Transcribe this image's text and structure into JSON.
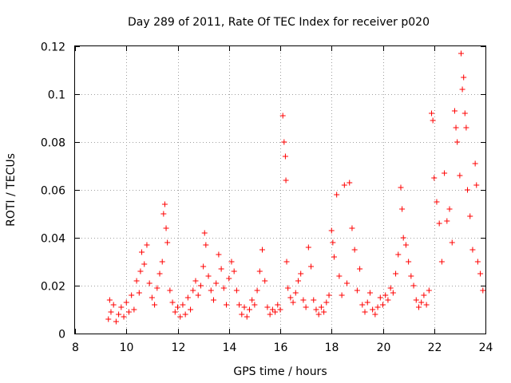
{
  "chart_data": {
    "type": "scatter",
    "title": "Day 289 of 2011, Rate Of TEC Index for receiver p020",
    "xlabel": "GPS time / hours",
    "ylabel": "ROTI / TECUs",
    "xlim": [
      8,
      24
    ],
    "ylim": [
      0,
      0.12
    ],
    "x_ticks": [
      "8",
      "10",
      "12",
      "14",
      "16",
      "18",
      "20",
      "22",
      "24"
    ],
    "y_ticks": [
      "0",
      "0.02",
      "0.04",
      "0.06",
      "0.08",
      "0.1",
      "0.12"
    ],
    "grid": true,
    "legend": "none",
    "marker": "plus",
    "color": "#ff0000",
    "series": [
      {
        "values": [
          [
            9.3,
            0.006
          ],
          [
            9.35,
            0.014
          ],
          [
            9.4,
            0.009
          ],
          [
            9.5,
            0.012
          ],
          [
            9.6,
            0.005
          ],
          [
            9.7,
            0.008
          ],
          [
            9.8,
            0.011
          ],
          [
            9.9,
            0.007
          ],
          [
            10.0,
            0.013
          ],
          [
            10.1,
            0.009
          ],
          [
            10.2,
            0.016
          ],
          [
            10.3,
            0.01
          ],
          [
            10.4,
            0.022
          ],
          [
            10.5,
            0.017
          ],
          [
            10.55,
            0.026
          ],
          [
            10.6,
            0.034
          ],
          [
            10.7,
            0.029
          ],
          [
            10.8,
            0.037
          ],
          [
            10.9,
            0.021
          ],
          [
            11.0,
            0.015
          ],
          [
            11.1,
            0.012
          ],
          [
            11.2,
            0.019
          ],
          [
            11.3,
            0.025
          ],
          [
            11.4,
            0.03
          ],
          [
            11.45,
            0.05
          ],
          [
            11.5,
            0.054
          ],
          [
            11.55,
            0.044
          ],
          [
            11.6,
            0.038
          ],
          [
            11.7,
            0.018
          ],
          [
            11.8,
            0.013
          ],
          [
            11.9,
            0.009
          ],
          [
            12.0,
            0.011
          ],
          [
            12.1,
            0.007
          ],
          [
            12.2,
            0.012
          ],
          [
            12.3,
            0.008
          ],
          [
            12.4,
            0.015
          ],
          [
            12.5,
            0.01
          ],
          [
            12.6,
            0.018
          ],
          [
            12.7,
            0.022
          ],
          [
            12.8,
            0.016
          ],
          [
            12.9,
            0.02
          ],
          [
            13.0,
            0.028
          ],
          [
            13.05,
            0.042
          ],
          [
            13.1,
            0.037
          ],
          [
            13.2,
            0.024
          ],
          [
            13.3,
            0.018
          ],
          [
            13.4,
            0.014
          ],
          [
            13.5,
            0.021
          ],
          [
            13.6,
            0.033
          ],
          [
            13.7,
            0.027
          ],
          [
            13.8,
            0.019
          ],
          [
            13.9,
            0.012
          ],
          [
            14.0,
            0.023
          ],
          [
            14.1,
            0.03
          ],
          [
            14.2,
            0.026
          ],
          [
            14.3,
            0.018
          ],
          [
            14.4,
            0.012
          ],
          [
            14.5,
            0.008
          ],
          [
            14.6,
            0.011
          ],
          [
            14.7,
            0.007
          ],
          [
            14.8,
            0.01
          ],
          [
            14.9,
            0.014
          ],
          [
            15.0,
            0.012
          ],
          [
            15.1,
            0.018
          ],
          [
            15.2,
            0.026
          ],
          [
            15.3,
            0.035
          ],
          [
            15.4,
            0.022
          ],
          [
            15.5,
            0.011
          ],
          [
            15.6,
            0.008
          ],
          [
            15.7,
            0.01
          ],
          [
            15.8,
            0.009
          ],
          [
            15.9,
            0.012
          ],
          [
            16.0,
            0.01
          ],
          [
            16.1,
            0.091
          ],
          [
            16.15,
            0.08
          ],
          [
            16.2,
            0.074
          ],
          [
            16.22,
            0.064
          ],
          [
            16.25,
            0.03
          ],
          [
            16.3,
            0.019
          ],
          [
            16.4,
            0.015
          ],
          [
            16.5,
            0.013
          ],
          [
            16.6,
            0.017
          ],
          [
            16.7,
            0.022
          ],
          [
            16.8,
            0.025
          ],
          [
            16.9,
            0.014
          ],
          [
            17.0,
            0.011
          ],
          [
            17.1,
            0.036
          ],
          [
            17.2,
            0.028
          ],
          [
            17.3,
            0.014
          ],
          [
            17.4,
            0.01
          ],
          [
            17.5,
            0.008
          ],
          [
            17.6,
            0.011
          ],
          [
            17.7,
            0.009
          ],
          [
            17.8,
            0.013
          ],
          [
            17.9,
            0.016
          ],
          [
            18.0,
            0.043
          ],
          [
            18.05,
            0.038
          ],
          [
            18.1,
            0.032
          ],
          [
            18.2,
            0.058
          ],
          [
            18.3,
            0.024
          ],
          [
            18.4,
            0.016
          ],
          [
            18.5,
            0.062
          ],
          [
            18.6,
            0.021
          ],
          [
            18.7,
            0.063
          ],
          [
            18.8,
            0.044
          ],
          [
            18.9,
            0.035
          ],
          [
            19.0,
            0.018
          ],
          [
            19.1,
            0.027
          ],
          [
            19.2,
            0.012
          ],
          [
            19.3,
            0.009
          ],
          [
            19.4,
            0.013
          ],
          [
            19.5,
            0.017
          ],
          [
            19.6,
            0.01
          ],
          [
            19.7,
            0.008
          ],
          [
            19.8,
            0.011
          ],
          [
            19.9,
            0.015
          ],
          [
            20.0,
            0.012
          ],
          [
            20.1,
            0.016
          ],
          [
            20.2,
            0.014
          ],
          [
            20.3,
            0.019
          ],
          [
            20.4,
            0.017
          ],
          [
            20.5,
            0.025
          ],
          [
            20.6,
            0.033
          ],
          [
            20.7,
            0.061
          ],
          [
            20.75,
            0.052
          ],
          [
            20.8,
            0.04
          ],
          [
            20.9,
            0.037
          ],
          [
            21.0,
            0.03
          ],
          [
            21.1,
            0.024
          ],
          [
            21.2,
            0.02
          ],
          [
            21.3,
            0.014
          ],
          [
            21.4,
            0.011
          ],
          [
            21.5,
            0.013
          ],
          [
            21.6,
            0.016
          ],
          [
            21.7,
            0.012
          ],
          [
            21.8,
            0.018
          ],
          [
            21.9,
            0.092
          ],
          [
            21.95,
            0.089
          ],
          [
            22.0,
            0.065
          ],
          [
            22.1,
            0.055
          ],
          [
            22.2,
            0.046
          ],
          [
            22.3,
            0.03
          ],
          [
            22.4,
            0.067
          ],
          [
            22.5,
            0.047
          ],
          [
            22.6,
            0.052
          ],
          [
            22.7,
            0.038
          ],
          [
            22.8,
            0.093
          ],
          [
            22.85,
            0.086
          ],
          [
            22.9,
            0.08
          ],
          [
            23.0,
            0.066
          ],
          [
            23.05,
            0.117
          ],
          [
            23.1,
            0.102
          ],
          [
            23.15,
            0.107
          ],
          [
            23.2,
            0.092
          ],
          [
            23.25,
            0.086
          ],
          [
            23.3,
            0.06
          ],
          [
            23.4,
            0.049
          ],
          [
            23.5,
            0.035
          ],
          [
            23.6,
            0.071
          ],
          [
            23.65,
            0.062
          ],
          [
            23.7,
            0.03
          ],
          [
            23.8,
            0.025
          ],
          [
            23.9,
            0.018
          ]
        ]
      }
    ]
  }
}
